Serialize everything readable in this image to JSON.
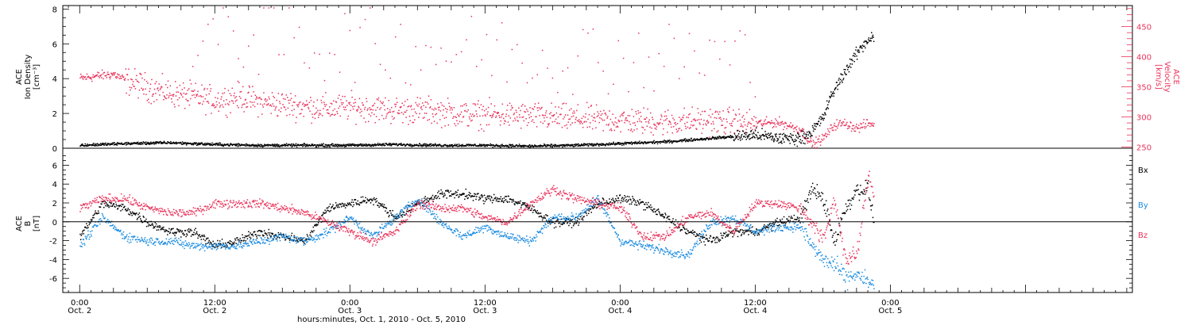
{
  "colors": {
    "black": "#000000",
    "pink": "#e8325a",
    "blue": "#1a8be0"
  },
  "xaxis": {
    "label": "hours:minutes, Oct.  1, 2010 - Oct.  5, 2010",
    "range_hours": [
      -1.5,
      93.5
    ],
    "ticks": [
      {
        "hours": 0,
        "time": "0:00",
        "date": "Oct. 2"
      },
      {
        "hours": 12,
        "time": "12:00",
        "date": "Oct. 2"
      },
      {
        "hours": 24,
        "time": "0:00",
        "date": "Oct. 3"
      },
      {
        "hours": 36,
        "time": "12:00",
        "date": "Oct. 3"
      },
      {
        "hours": 48,
        "time": "0:00",
        "date": "Oct. 4"
      },
      {
        "hours": 60,
        "time": "12:00",
        "date": "Oct. 4"
      },
      {
        "hours": 72,
        "time": "0:00",
        "date": "Oct. 5"
      }
    ]
  },
  "chart_data": [
    {
      "type": "scatter",
      "panel": "top",
      "ylabel_left": [
        "ACE",
        "Ion Density",
        "[cm⁻³]"
      ],
      "ylabel_right": [
        "ACE",
        "Velocity",
        "[km/s]"
      ],
      "ylim_left": [
        0,
        8.2
      ],
      "ylim_right": [
        248,
        485
      ],
      "yticks_left": [
        "0",
        "2",
        "4",
        "6",
        "8"
      ],
      "yticks_right": [
        "250",
        "300",
        "350",
        "400",
        "450"
      ],
      "series": [
        {
          "axis": "left",
          "color": "black",
          "x": [
            0,
            4,
            8,
            12,
            16,
            20,
            24,
            28,
            32,
            36,
            40,
            44,
            48,
            52,
            56,
            58,
            60,
            62,
            64,
            65,
            66,
            66.5,
            67,
            68,
            69,
            70,
            70.5
          ],
          "y": [
            0.2,
            0.3,
            0.35,
            0.25,
            0.2,
            0.2,
            0.2,
            0.25,
            0.2,
            0.2,
            0.15,
            0.2,
            0.3,
            0.4,
            0.6,
            0.7,
            0.8,
            0.6,
            0.6,
            1.0,
            1.8,
            2.7,
            3.4,
            4.5,
            5.5,
            6.3,
            6.5
          ]
        },
        {
          "axis": "right",
          "color": "pink",
          "x": [
            0,
            2,
            3,
            4,
            6,
            8,
            10,
            12,
            14,
            16,
            18,
            20,
            22,
            24,
            26,
            28,
            30,
            32,
            34,
            36,
            40,
            44,
            48,
            52,
            56,
            60,
            62,
            64,
            65,
            66,
            67,
            68,
            69,
            70,
            70.5
          ],
          "y": [
            365,
            370,
            372,
            362,
            350,
            340,
            335,
            328,
            335,
            325,
            322,
            318,
            315,
            318,
            315,
            312,
            312,
            310,
            305,
            305,
            302,
            298,
            295,
            292,
            295,
            290,
            292,
            280,
            255,
            265,
            288,
            290,
            282,
            290,
            288
          ]
        }
      ]
    },
    {
      "type": "scatter",
      "panel": "bottom",
      "ylabel_left": [
        "ACE",
        "B",
        "[nT]"
      ],
      "ylim": [
        -7.5,
        7.8
      ],
      "yticks": [
        "-6",
        "-4",
        "-2",
        "0",
        "2",
        "4",
        "6"
      ],
      "legend": [
        "Bx",
        "By",
        "Bz"
      ],
      "series": [
        {
          "name": "Bx",
          "color": "black",
          "x": [
            0,
            2,
            4,
            6,
            8,
            10,
            12,
            14,
            16,
            18,
            20,
            22,
            24,
            26,
            28,
            30,
            32,
            34,
            36,
            38,
            40,
            42,
            44,
            46,
            48,
            50,
            52,
            54,
            56,
            58,
            60,
            62,
            64,
            65,
            66,
            67,
            68,
            69,
            70,
            70.5
          ],
          "y": [
            -1.5,
            2.0,
            1.5,
            0.0,
            -1.0,
            -1.0,
            -2.5,
            -2.0,
            -1.0,
            -1.5,
            -2.0,
            1.5,
            2.0,
            2.5,
            0.5,
            2.0,
            3.0,
            3.0,
            2.5,
            2.5,
            1.5,
            0.0,
            0.0,
            2.0,
            2.5,
            2.0,
            0.5,
            -1.0,
            -2.0,
            -1.0,
            -1.0,
            0.0,
            0.5,
            3.5,
            2.5,
            -2.0,
            1.5,
            3.5,
            3.5,
            0.0
          ]
        },
        {
          "name": "By",
          "color": "blue",
          "x": [
            0,
            2,
            4,
            6,
            8,
            10,
            12,
            14,
            16,
            18,
            20,
            22,
            24,
            26,
            28,
            30,
            32,
            34,
            36,
            38,
            40,
            42,
            44,
            46,
            48,
            50,
            52,
            54,
            56,
            58,
            60,
            62,
            64,
            65,
            66,
            67,
            68,
            69,
            70,
            70.5
          ],
          "y": [
            -2.5,
            0.5,
            -1.5,
            -2.0,
            -2.0,
            -2.5,
            -2.5,
            -2.5,
            -2.0,
            -1.5,
            -2.0,
            -1.0,
            0.5,
            -1.5,
            0.5,
            2.5,
            0.0,
            -1.5,
            -0.5,
            -1.5,
            -2.0,
            0.5,
            0.5,
            2.5,
            -2.0,
            -2.5,
            -3.0,
            -3.5,
            0.0,
            0.5,
            -1.0,
            -0.5,
            -0.5,
            -2.5,
            -4.0,
            -4.5,
            -6.0,
            -5.5,
            -6.5,
            -6.5
          ]
        },
        {
          "name": "Bz",
          "color": "pink",
          "x": [
            0,
            2,
            4,
            6,
            8,
            10,
            12,
            14,
            16,
            18,
            20,
            22,
            24,
            26,
            28,
            30,
            32,
            34,
            36,
            38,
            40,
            42,
            44,
            46,
            48,
            50,
            52,
            54,
            56,
            58,
            60,
            62,
            64,
            65,
            66,
            67,
            68,
            69,
            70,
            70.5
          ],
          "y": [
            1.5,
            2.5,
            2.5,
            1.5,
            1.0,
            1.0,
            2.0,
            2.0,
            2.0,
            1.5,
            1.0,
            0.0,
            -1.0,
            -2.0,
            -1.0,
            2.0,
            1.5,
            1.5,
            0.5,
            0.0,
            2.0,
            3.5,
            2.5,
            2.0,
            1.5,
            -1.5,
            -1.5,
            0.5,
            1.0,
            -1.0,
            2.0,
            2.0,
            1.5,
            0.0,
            -2.0,
            2.5,
            -4.0,
            -3.5,
            5.0,
            3.0
          ]
        }
      ]
    }
  ]
}
